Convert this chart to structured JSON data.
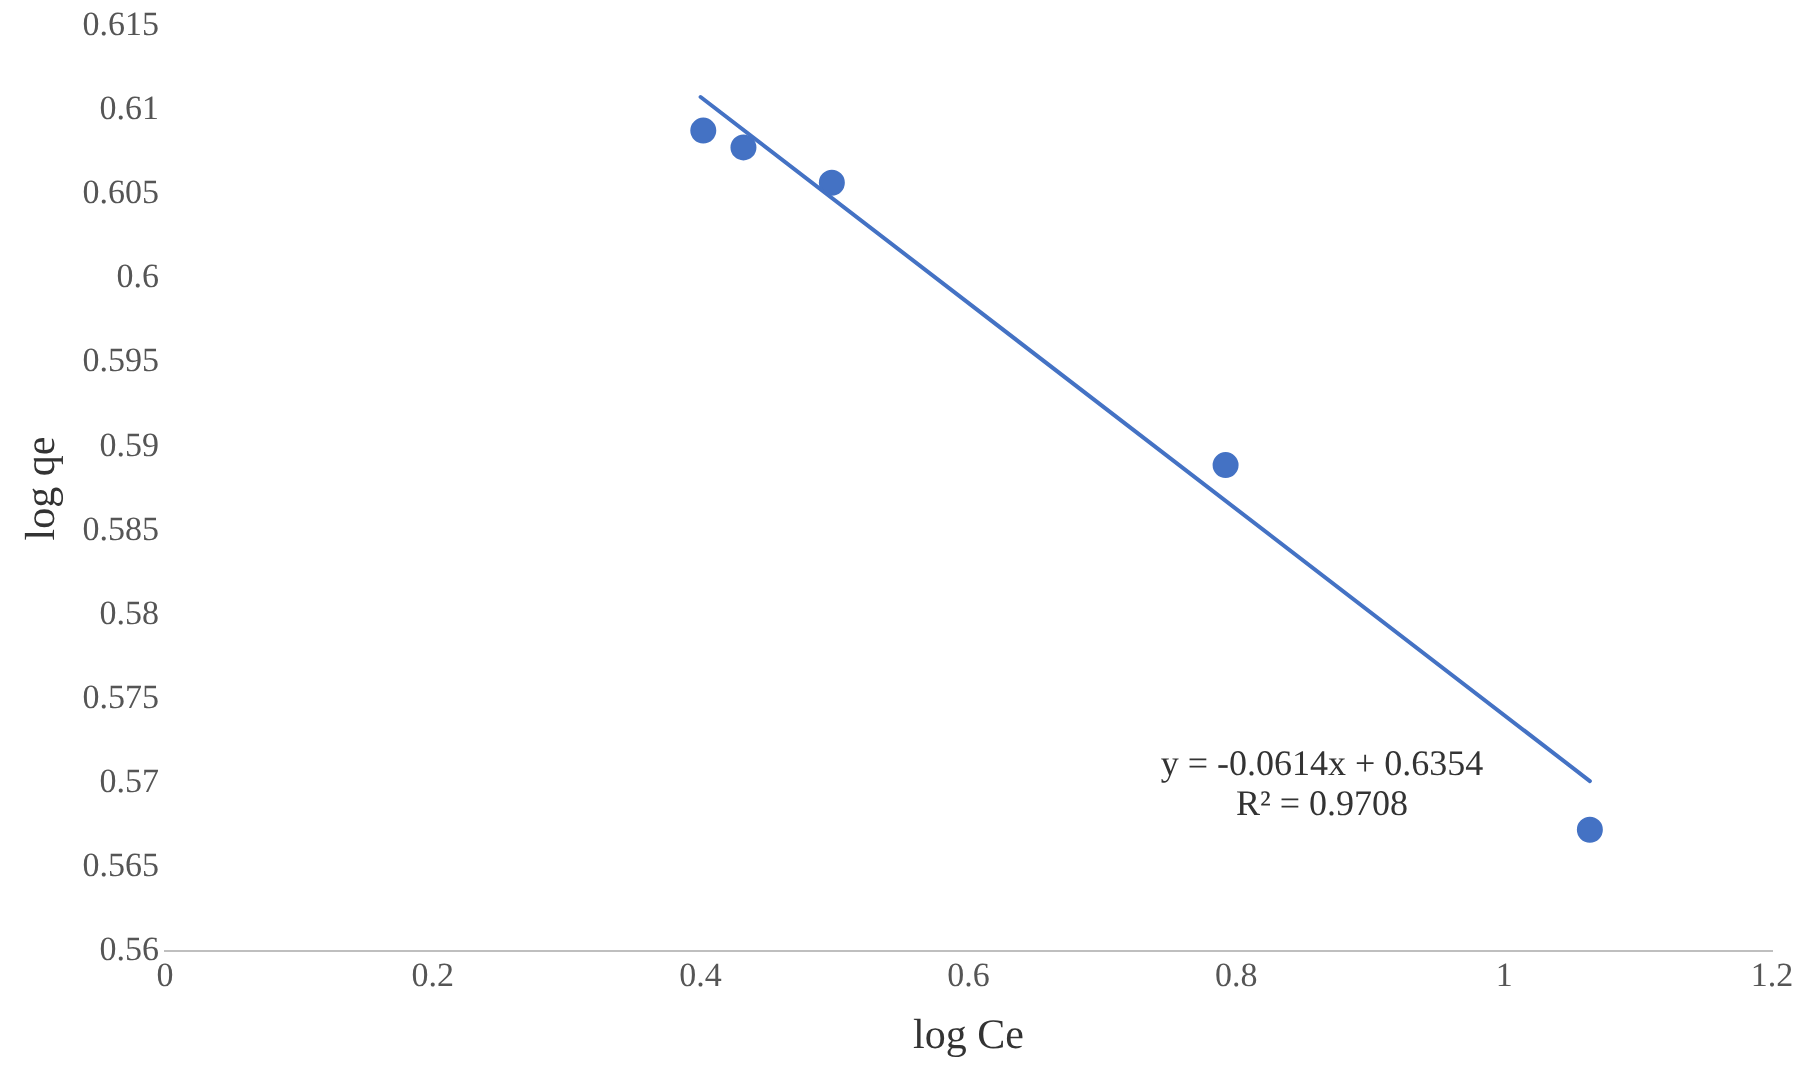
{
  "chart_data": {
    "type": "scatter",
    "xlabel": "log Ce",
    "ylabel": "log qe",
    "xlim": [
      0,
      1.2
    ],
    "xticks": [
      0,
      0.2,
      0.4,
      0.6,
      0.8,
      1,
      1.2
    ],
    "ylim": [
      0.56,
      0.615
    ],
    "yticks": [
      0.56,
      0.565,
      0.57,
      0.575,
      0.58,
      0.585,
      0.59,
      0.595,
      0.6,
      0.605,
      0.61,
      0.615
    ],
    "grid": false,
    "legend": false,
    "marker": "circle",
    "series": [
      {
        "type": "scatter",
        "color": "#4472c4",
        "x": [
          0.402,
          0.432,
          0.498,
          0.792,
          1.064
        ],
        "values": [
          0.6088,
          0.6078,
          0.6057,
          0.5889,
          0.5672
        ]
      },
      {
        "type": "line",
        "color": "#4472c4",
        "line_style": "solid",
        "marker": "none",
        "x": [
          0.4,
          1.064
        ],
        "values": [
          0.6108,
          0.5701
        ]
      }
    ],
    "annotations": [
      "y = -0.0614x + 0.6354",
      "R² = 0.9708"
    ]
  }
}
